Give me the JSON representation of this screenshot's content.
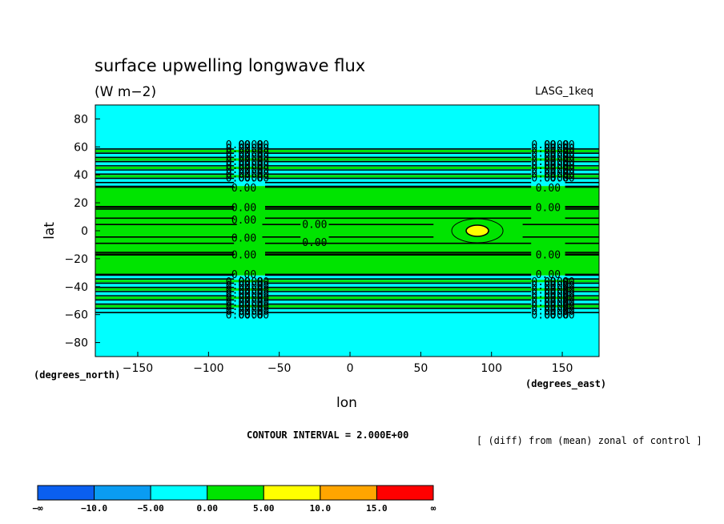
{
  "chart_data": {
    "type": "heatmap",
    "title": "surface upwelling longwave flux",
    "units": "(W m−2)",
    "dataset_label": "LASG_1keq",
    "xlabel": "lon",
    "ylabel": "lat",
    "x_unit_label": "(degrees_east)",
    "y_unit_label": "(degrees_north)",
    "xlim": [
      -180,
      176
    ],
    "ylim": [
      -90,
      90
    ],
    "x_ticks": [
      {
        "value": -150,
        "label": "−150"
      },
      {
        "value": -100,
        "label": "−100"
      },
      {
        "value": -50,
        "label": "−50"
      },
      {
        "value": 0,
        "label": "0"
      },
      {
        "value": 50,
        "label": "50"
      },
      {
        "value": 100,
        "label": "100"
      },
      {
        "value": 150,
        "label": "150"
      }
    ],
    "y_ticks": [
      {
        "value": 80,
        "label": "80"
      },
      {
        "value": 60,
        "label": "60"
      },
      {
        "value": 40,
        "label": "40"
      },
      {
        "value": 20,
        "label": "20"
      },
      {
        "value": 0,
        "label": "0"
      },
      {
        "value": -20,
        "label": "−20"
      },
      {
        "value": -40,
        "label": "−40"
      },
      {
        "value": -60,
        "label": "−60"
      },
      {
        "value": -80,
        "label": "−80"
      }
    ],
    "contour_interval_text": "CONTOUR INTERVAL = 2.000E+00",
    "note": "[ (diff) from (mean) zonal of control ]",
    "fill_bands": [
      {
        "lat_min": 59,
        "lat_max": 90,
        "level": "-5.00 to 0.00"
      },
      {
        "lat_min": 32,
        "lat_max": 59,
        "level": "-5.00 to 0.00"
      },
      {
        "lat_min": -32,
        "lat_max": 32,
        "level": "0.00 to 5.00"
      },
      {
        "lat_min": -59,
        "lat_max": -32,
        "level": "-5.00 to 0.00"
      },
      {
        "lat_min": -90,
        "lat_max": -59,
        "level": "-5.00 to 0.00"
      }
    ],
    "max_feature": {
      "lon": 90,
      "lat": 0,
      "level": "5.00 to 10.0"
    },
    "contour_label": "0.00",
    "legend": {
      "colors": [
        "#0a5ff0",
        "#0a9cf2",
        "#00ffff",
        "#00e400",
        "#ffff00",
        "#ffa500",
        "#ff0000"
      ],
      "labels": [
        "−∞",
        "−10.0",
        "−5.00",
        "0.00",
        "5.00",
        "10.0",
        "15.0",
        "∞"
      ]
    },
    "colors": {
      "cyan": "#00ffff",
      "green": "#00e400",
      "yellow": "#ffff00",
      "line": "#000000"
    }
  }
}
